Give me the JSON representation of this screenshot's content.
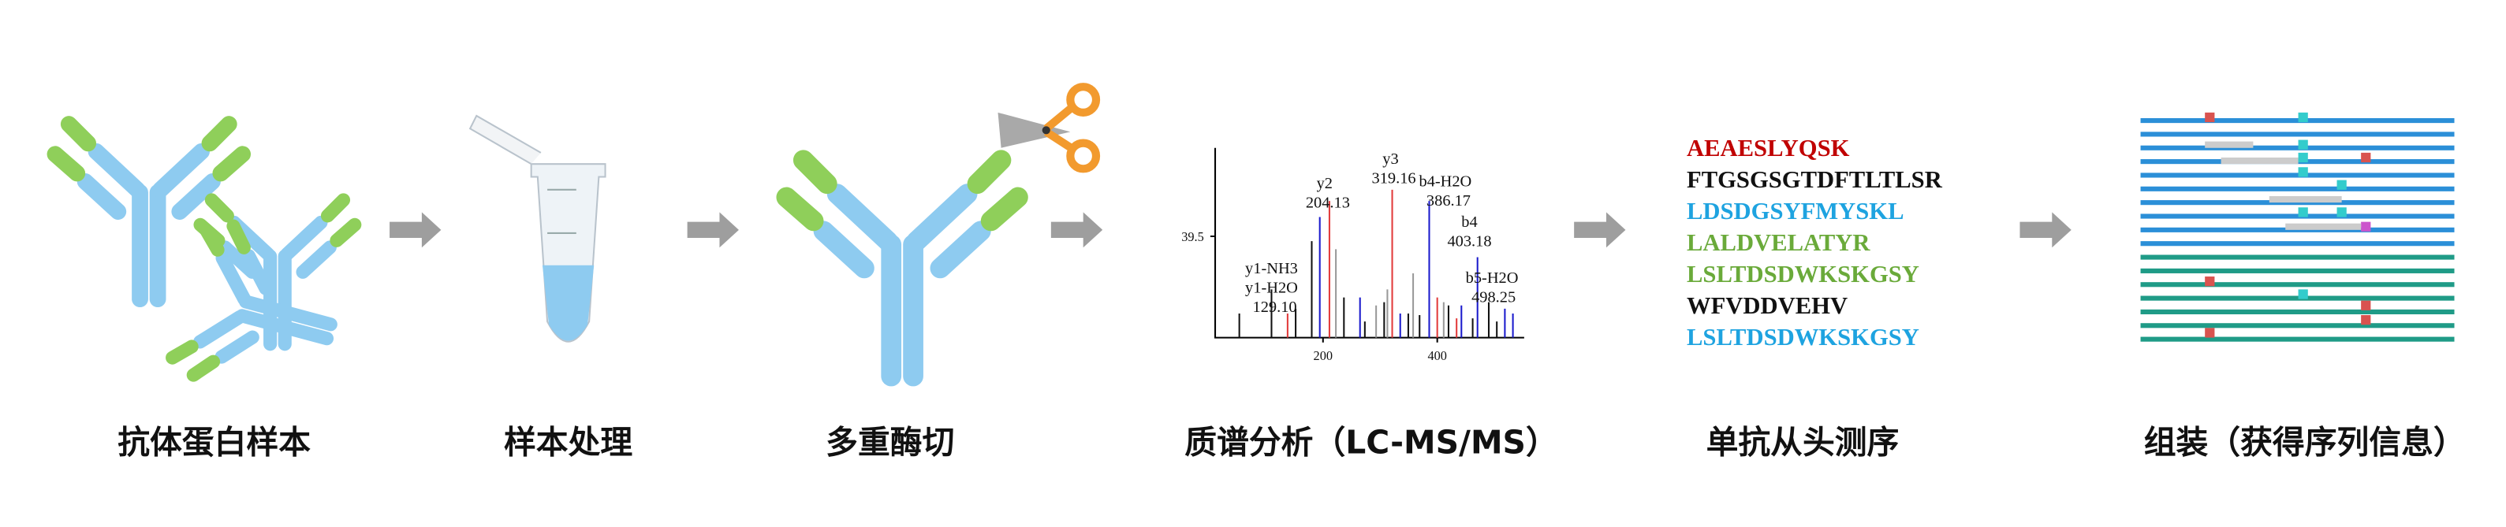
{
  "steps": [
    {
      "label": "抗体蛋白样本"
    },
    {
      "label": "样本处理"
    },
    {
      "label": "多重酶切"
    },
    {
      "label": "质谱分析（LC-MS/MS）"
    },
    {
      "label": "单抗从头测序"
    },
    {
      "label": "组装（获得序列信息）"
    }
  ],
  "spectrum": {
    "y_tick": "39.5",
    "x_ticks": [
      "200",
      "400"
    ],
    "peak_labels": [
      "y2",
      "204.13",
      "y3",
      "319.16",
      "b4-H2O",
      "386.17",
      "b4",
      "403.18",
      "y1-NH3",
      "y1-H2O",
      "129.10",
      "b5-H2O",
      "498.25"
    ]
  },
  "sequences": [
    {
      "text": "AEAESLYQSK",
      "color": "#c00000"
    },
    {
      "text": "FTGSGSGTDFTLTLSR",
      "color": "#111111"
    },
    {
      "text": "LDSDGSYFMYSKL",
      "color": "#1ea3e0"
    },
    {
      "text": "LALDVELATYR",
      "color": "#6aaa3a"
    },
    {
      "text": "LSLTDSDWKSKGSY",
      "color": "#6aaa3a"
    },
    {
      "text": "WFVDDVEHV",
      "color": "#111111"
    },
    {
      "text": "LSLTDSDWKSKGSY",
      "color": "#1ea3e0"
    }
  ]
}
